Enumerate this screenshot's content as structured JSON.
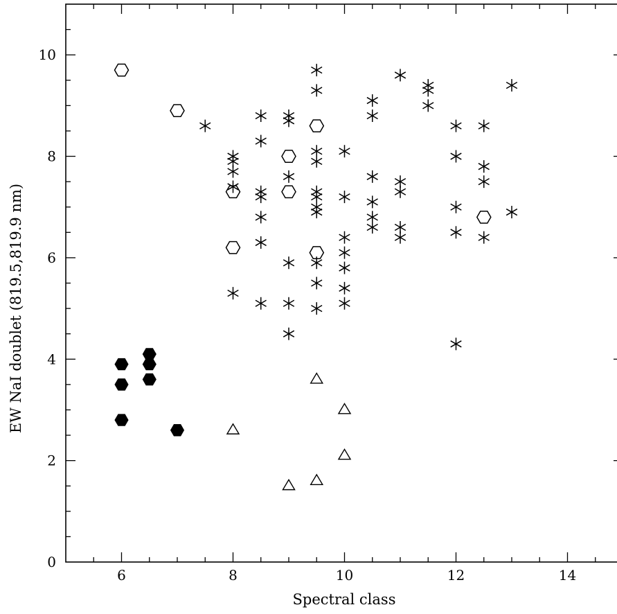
{
  "chart_data": {
    "type": "scatter",
    "title": "",
    "xlabel": "Spectral class",
    "ylabel": "EW NaI doublet (819.5,819.9 nm)",
    "xlim": [
      5,
      15
    ],
    "ylim": [
      0,
      11
    ],
    "grid": false,
    "x_ticks": [
      6,
      8,
      10,
      12,
      14
    ],
    "y_ticks": [
      0,
      2,
      4,
      6,
      8,
      10
    ],
    "series": [
      {
        "marker": "filled-hexagon",
        "points": [
          [
            6,
            3.9
          ],
          [
            6,
            3.5
          ],
          [
            6,
            2.8
          ],
          [
            6.5,
            4.1
          ],
          [
            6.5,
            3.9
          ],
          [
            6.5,
            3.6
          ],
          [
            7,
            2.6
          ]
        ]
      },
      {
        "marker": "open-hexagon",
        "points": [
          [
            6,
            9.7
          ],
          [
            7,
            8.9
          ],
          [
            8,
            7.3
          ],
          [
            8,
            6.2
          ],
          [
            9,
            8.0
          ],
          [
            9,
            7.3
          ],
          [
            9.5,
            8.6
          ],
          [
            9.5,
            6.1
          ],
          [
            12.5,
            6.8
          ]
        ]
      },
      {
        "marker": "asterisk",
        "points": [
          [
            7.5,
            8.6
          ],
          [
            8,
            8.0
          ],
          [
            8,
            7.9
          ],
          [
            8,
            7.7
          ],
          [
            8,
            7.4
          ],
          [
            8,
            5.3
          ],
          [
            8.5,
            8.8
          ],
          [
            8.5,
            8.3
          ],
          [
            8.5,
            7.3
          ],
          [
            8.5,
            7.2
          ],
          [
            8.5,
            6.8
          ],
          [
            8.5,
            6.3
          ],
          [
            8.5,
            5.1
          ],
          [
            9,
            8.8
          ],
          [
            9,
            8.7
          ],
          [
            9,
            7.6
          ],
          [
            9,
            5.9
          ],
          [
            9,
            5.1
          ],
          [
            9,
            4.5
          ],
          [
            9.5,
            9.7
          ],
          [
            9.5,
            9.3
          ],
          [
            9.5,
            8.1
          ],
          [
            9.5,
            7.9
          ],
          [
            9.5,
            7.3
          ],
          [
            9.5,
            7.2
          ],
          [
            9.5,
            7.0
          ],
          [
            9.5,
            6.9
          ],
          [
            9.5,
            5.9
          ],
          [
            9.5,
            5.5
          ],
          [
            9.5,
            5.0
          ],
          [
            10,
            8.1
          ],
          [
            10,
            7.2
          ],
          [
            10,
            6.4
          ],
          [
            10,
            6.1
          ],
          [
            10,
            5.8
          ],
          [
            10,
            5.4
          ],
          [
            10,
            5.1
          ],
          [
            10.5,
            9.1
          ],
          [
            10.5,
            8.8
          ],
          [
            10.5,
            7.6
          ],
          [
            10.5,
            7.1
          ],
          [
            10.5,
            6.8
          ],
          [
            10.5,
            6.6
          ],
          [
            11,
            9.6
          ],
          [
            11,
            7.5
          ],
          [
            11,
            7.3
          ],
          [
            11,
            6.6
          ],
          [
            11,
            6.4
          ],
          [
            11.5,
            9.4
          ],
          [
            11.5,
            9.3
          ],
          [
            11.5,
            9.0
          ],
          [
            12,
            8.6
          ],
          [
            12,
            8.0
          ],
          [
            12,
            7.0
          ],
          [
            12,
            6.5
          ],
          [
            12,
            4.3
          ],
          [
            12.5,
            8.6
          ],
          [
            12.5,
            7.8
          ],
          [
            12.5,
            7.5
          ],
          [
            12.5,
            6.4
          ],
          [
            13,
            9.4
          ],
          [
            13,
            6.9
          ]
        ]
      },
      {
        "marker": "open-triangle",
        "points": [
          [
            8,
            2.6
          ],
          [
            9,
            1.5
          ],
          [
            9.5,
            3.6
          ],
          [
            9.5,
            1.6
          ],
          [
            10,
            3.0
          ],
          [
            10,
            2.1
          ]
        ]
      }
    ]
  }
}
